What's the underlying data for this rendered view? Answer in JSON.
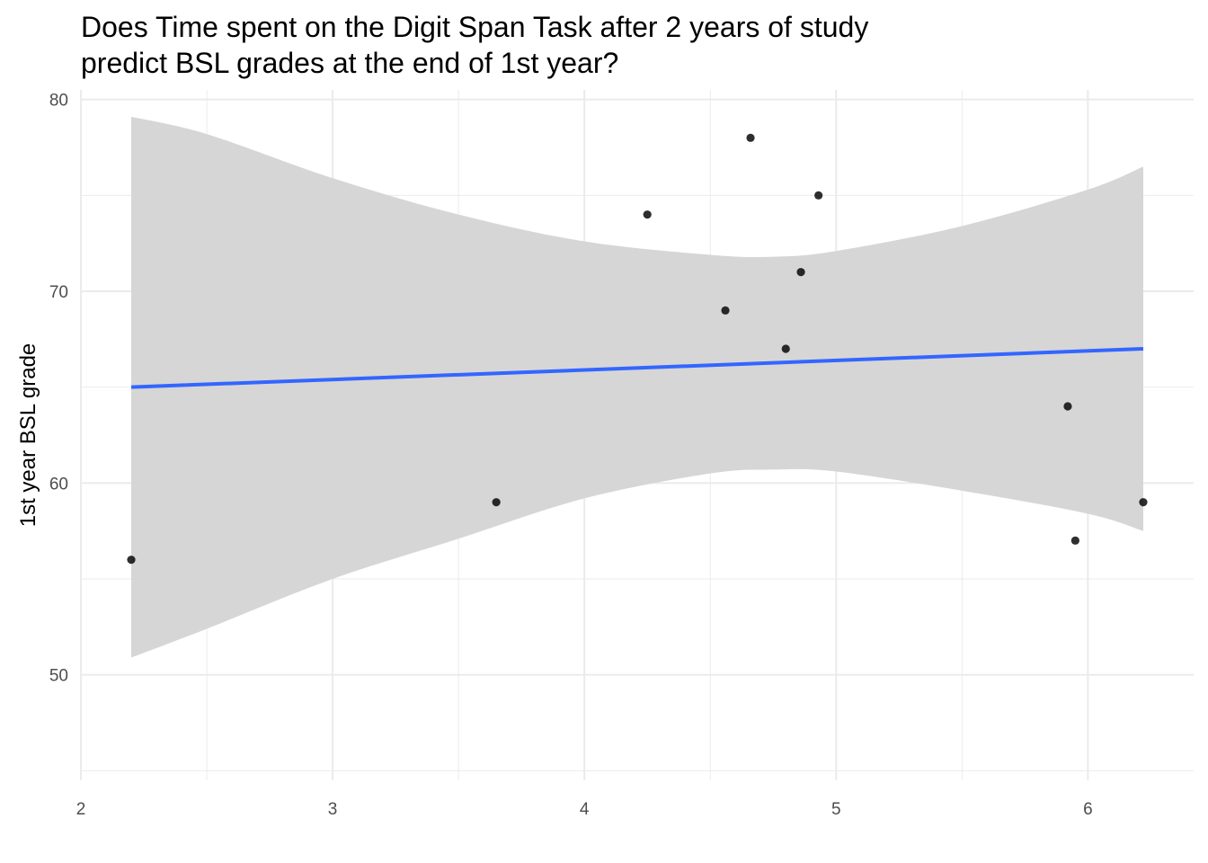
{
  "chart_data": {
    "type": "scatter",
    "title_lines": [
      "Does Time spent on the Digit Span Task after 2 years of study",
      "predict BSL grades at the end of 1st year?"
    ],
    "xlabel": "",
    "ylabel": "1st year BSL grade",
    "xlim": [
      2,
      6.42
    ],
    "ylim": [
      44.5,
      80.5
    ],
    "x_ticks": [
      2,
      3,
      4,
      5,
      6
    ],
    "y_ticks": [
      50,
      60,
      70,
      80
    ],
    "x_minor": [
      2.5,
      3.5,
      4.5,
      5.5
    ],
    "y_minor": [
      45,
      55,
      65,
      75
    ],
    "grid": true,
    "points": [
      {
        "x": 2.2,
        "y": 56
      },
      {
        "x": 3.65,
        "y": 59
      },
      {
        "x": 4.25,
        "y": 74
      },
      {
        "x": 4.56,
        "y": 69
      },
      {
        "x": 4.66,
        "y": 78
      },
      {
        "x": 4.8,
        "y": 67
      },
      {
        "x": 4.86,
        "y": 71
      },
      {
        "x": 4.93,
        "y": 75
      },
      {
        "x": 5.92,
        "y": 64
      },
      {
        "x": 5.95,
        "y": 57
      },
      {
        "x": 6.22,
        "y": 59
      }
    ],
    "fit_line": {
      "x": [
        2.2,
        6.22
      ],
      "y": [
        65.0,
        67.0
      ],
      "color": "#3366ff"
    },
    "confidence_band": {
      "x": [
        2.2,
        2.5,
        3.0,
        3.5,
        4.0,
        4.5,
        4.75,
        5.0,
        5.5,
        6.0,
        6.22
      ],
      "upper": [
        79.1,
        78.2,
        75.9,
        74.0,
        72.6,
        71.9,
        71.8,
        72.1,
        73.4,
        75.3,
        76.5
      ],
      "lower": [
        50.9,
        52.4,
        55.0,
        57.1,
        59.2,
        60.5,
        60.7,
        60.6,
        59.6,
        58.4,
        57.5
      ],
      "color": "#d6d6d6"
    },
    "point_color": "#000000",
    "grid_color": "#ebebeb"
  }
}
